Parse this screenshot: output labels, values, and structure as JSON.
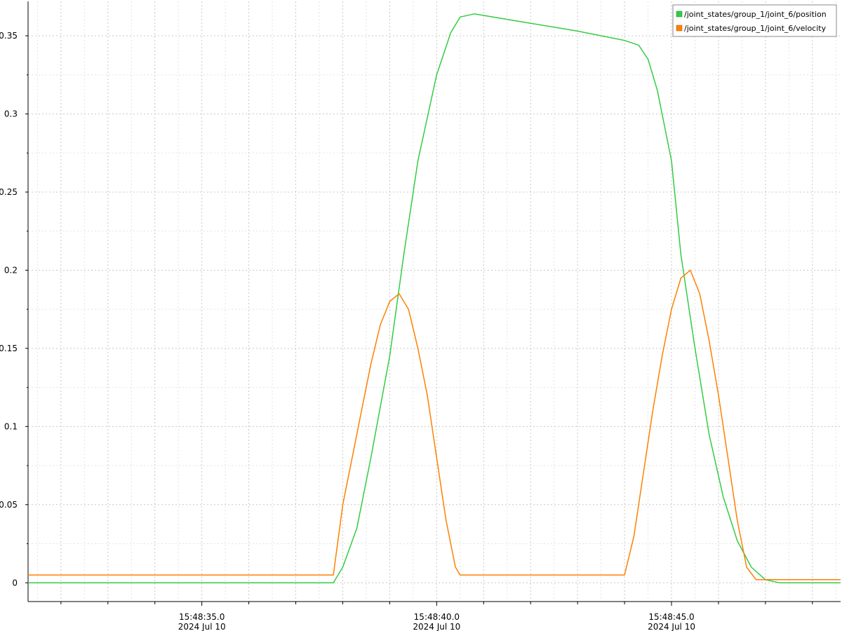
{
  "chart_data": {
    "type": "line",
    "x_unit": "seconds (clock time, 15:48:xx.x)",
    "xlim": [
      31.3,
      48.6
    ],
    "ylim": [
      -0.012,
      0.372
    ],
    "x_ticks": [
      {
        "x": 35.0,
        "time": "15:48:35.0",
        "date": "2024 Jul 10"
      },
      {
        "x": 40.0,
        "time": "15:48:40.0",
        "date": "2024 Jul 10"
      },
      {
        "x": 45.0,
        "time": "15:48:45.0",
        "date": "2024 Jul 10"
      }
    ],
    "y_ticks": [
      {
        "value": 0,
        "label": "0"
      },
      {
        "value": 0.05,
        "label": "0.05"
      },
      {
        "value": 0.1,
        "label": "0.1"
      },
      {
        "value": 0.15,
        "label": "0.15"
      },
      {
        "value": 0.2,
        "label": "0.2"
      },
      {
        "value": 0.25,
        "label": "0.25"
      },
      {
        "value": 0.3,
        "label": "0.3"
      },
      {
        "value": 0.35,
        "label": "0.35"
      }
    ],
    "grid": true,
    "legend_position": "top-right",
    "series": [
      {
        "name": "/joint_states/group_1/joint_6/position",
        "color": "#33cc44",
        "x": [
          31.3,
          37.8,
          38.0,
          38.3,
          38.6,
          39.0,
          39.3,
          39.6,
          40.0,
          40.3,
          40.5,
          40.8,
          41.2,
          42.0,
          43.0,
          44.0,
          44.3,
          44.5,
          44.7,
          45.0,
          45.2,
          45.5,
          45.8,
          46.1,
          46.4,
          46.7,
          47.0,
          47.3,
          47.6,
          48.6
        ],
        "y": [
          0.0,
          0.0,
          0.01,
          0.035,
          0.08,
          0.145,
          0.21,
          0.27,
          0.325,
          0.352,
          0.362,
          0.364,
          0.362,
          0.358,
          0.353,
          0.347,
          0.344,
          0.335,
          0.315,
          0.27,
          0.21,
          0.15,
          0.095,
          0.055,
          0.027,
          0.01,
          0.002,
          0.0,
          0.0,
          0.0
        ]
      },
      {
        "name": "/joint_states/group_1/joint_6/velocity",
        "color": "#ff8000",
        "x": [
          31.3,
          37.0,
          37.8,
          38.0,
          38.2,
          38.4,
          38.6,
          38.8,
          39.0,
          39.2,
          39.4,
          39.6,
          39.8,
          40.0,
          40.2,
          40.4,
          40.5,
          44.0,
          44.2,
          44.4,
          44.6,
          44.8,
          45.0,
          45.2,
          45.4,
          45.6,
          45.8,
          46.0,
          46.2,
          46.4,
          46.6,
          46.8,
          48.6
        ],
        "y": [
          0.005,
          0.005,
          0.005,
          0.05,
          0.08,
          0.11,
          0.14,
          0.165,
          0.18,
          0.185,
          0.175,
          0.15,
          0.12,
          0.08,
          0.04,
          0.01,
          0.005,
          0.005,
          0.03,
          0.07,
          0.11,
          0.145,
          0.175,
          0.195,
          0.2,
          0.185,
          0.155,
          0.12,
          0.08,
          0.04,
          0.01,
          0.002,
          0.002
        ]
      }
    ]
  }
}
